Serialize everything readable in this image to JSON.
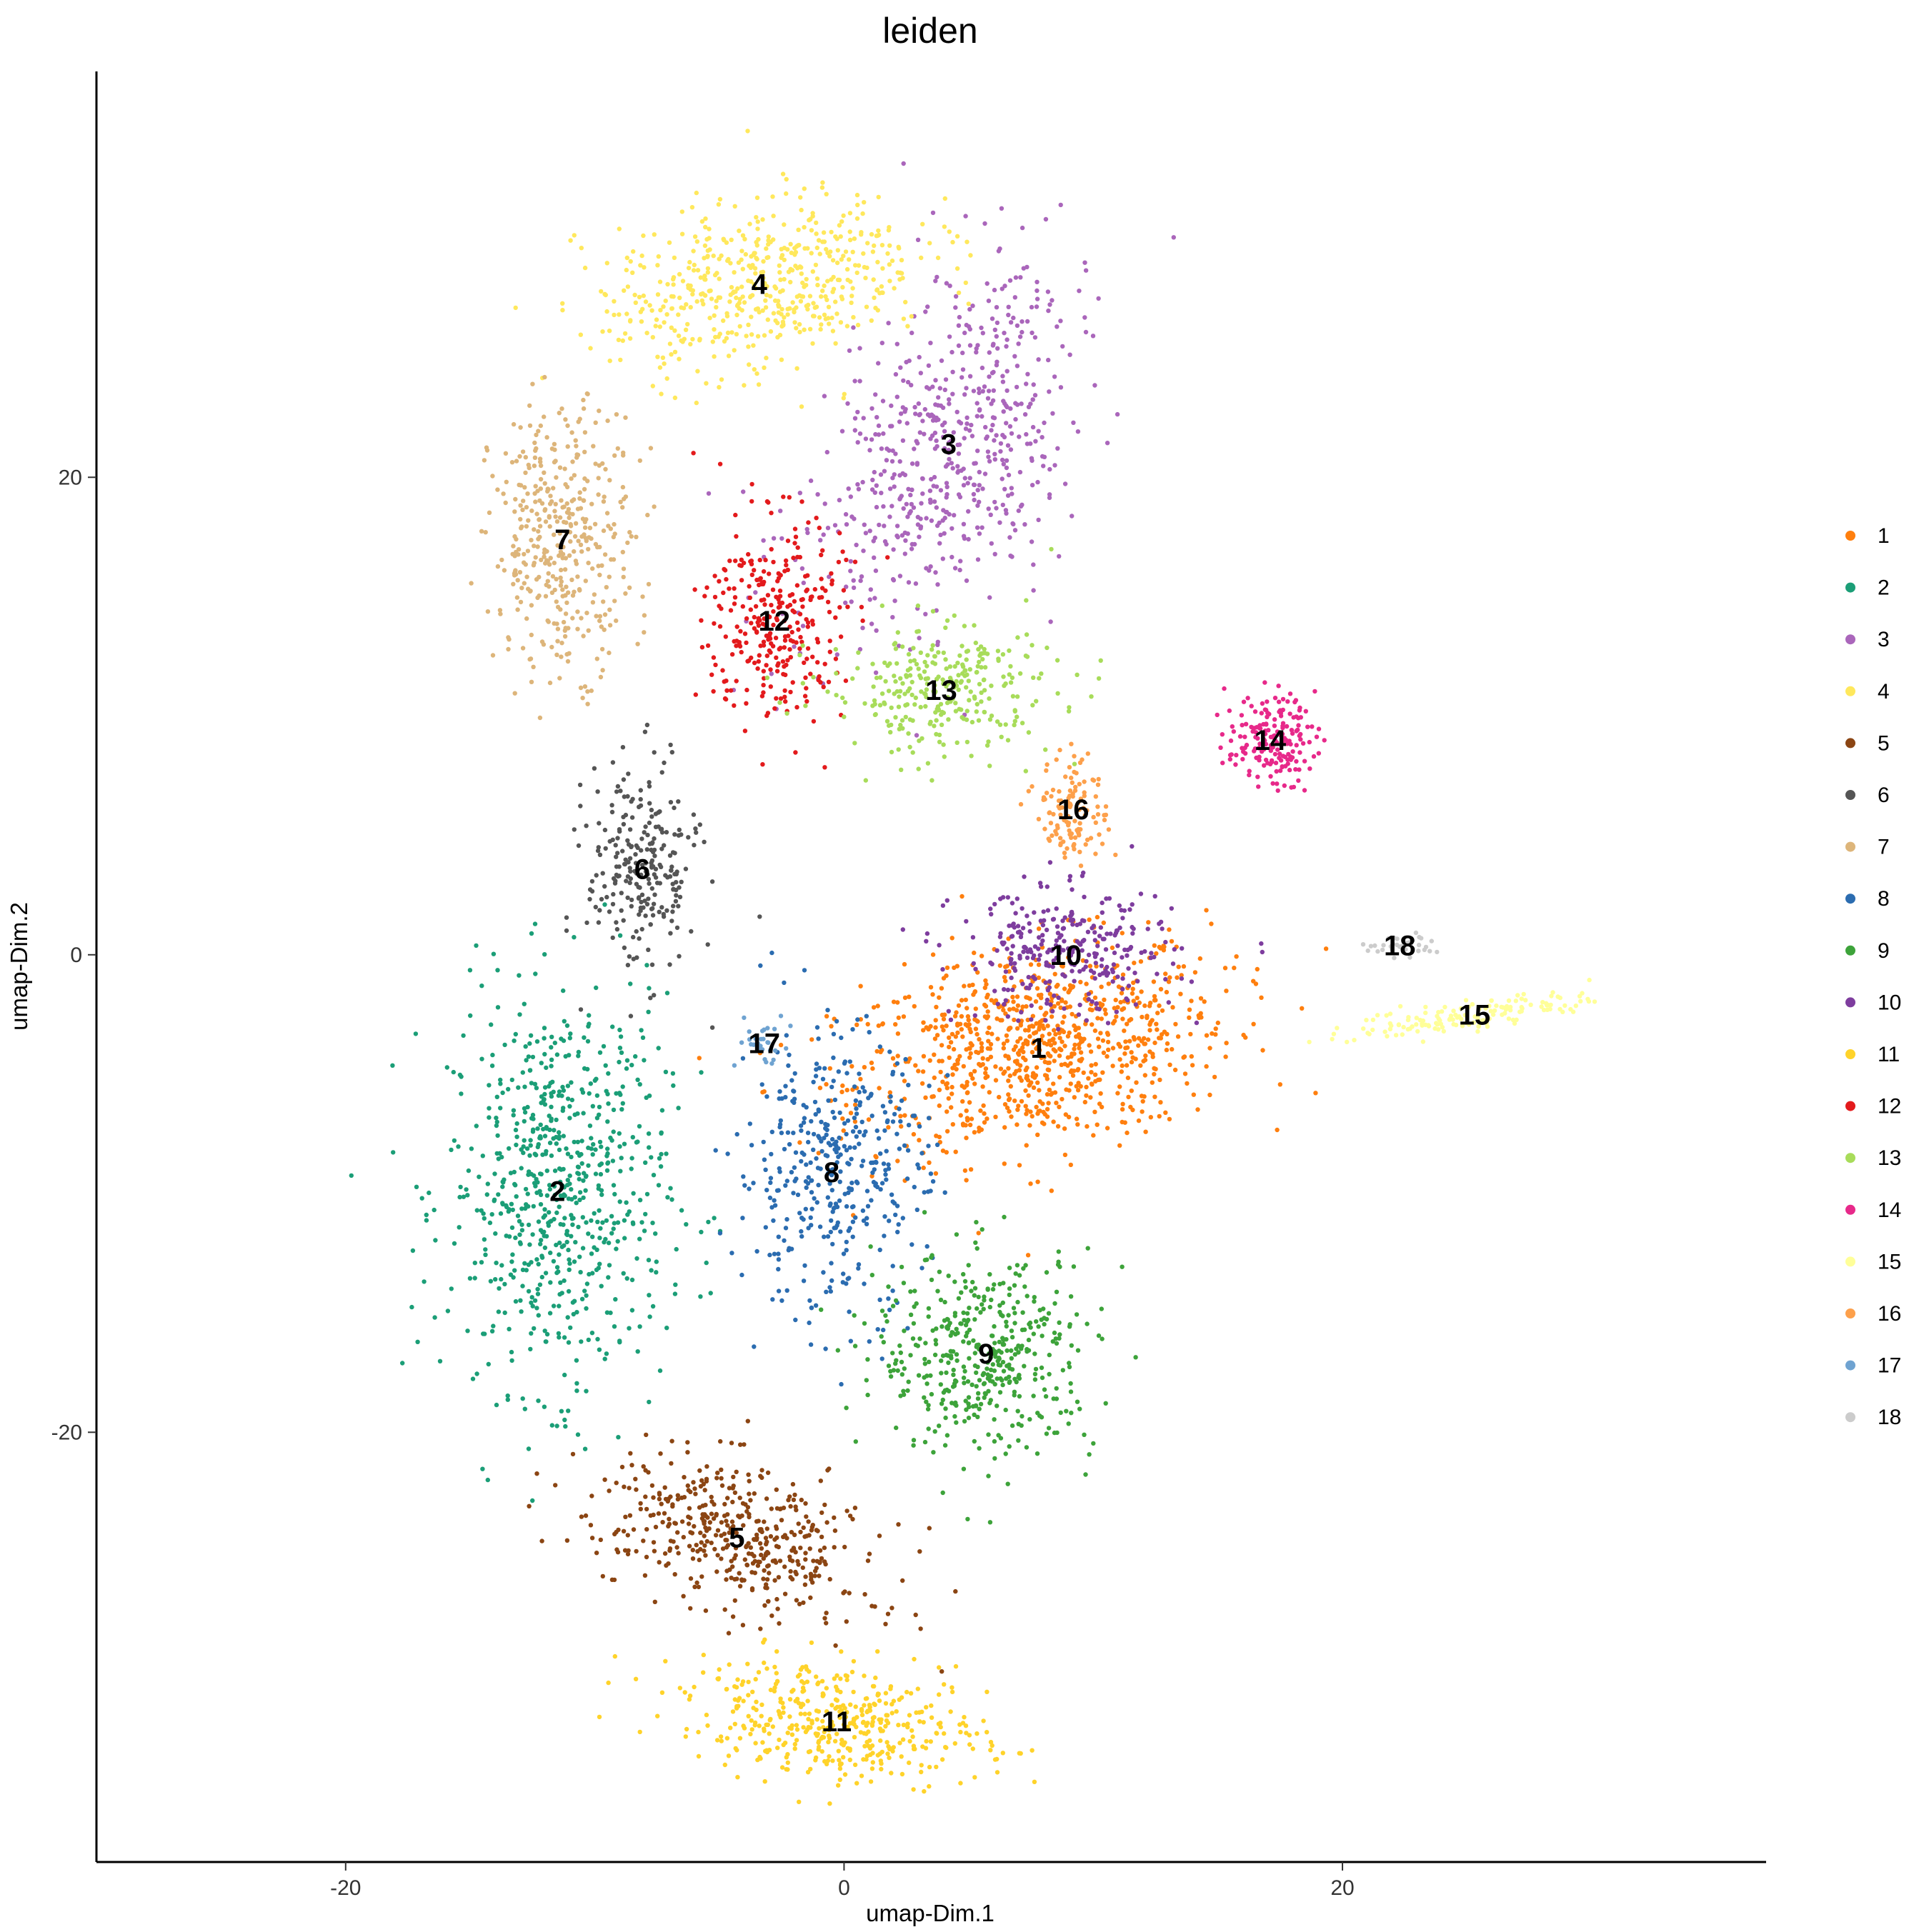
{
  "chart_data": {
    "type": "scatter",
    "title": "leiden",
    "xlabel": "umap-Dim.1",
    "ylabel": "umap-Dim.2",
    "xlim": [
      -30,
      37
    ],
    "ylim": [
      -38,
      37
    ],
    "xticks": [
      -20,
      0,
      20
    ],
    "yticks": [
      -20,
      0,
      20
    ],
    "tick_labels_x": [
      "-20",
      "0",
      "20"
    ],
    "tick_labels_y": [
      "-20",
      "0",
      "20"
    ],
    "grid": false,
    "legend": {
      "placement": "right"
    },
    "series": [
      {
        "name": "1",
        "color": "#FF7F0E",
        "label_pos": [
          7.8,
          -3.9
        ],
        "spread": [
          7.0,
          3.8
        ],
        "angle": 12,
        "n": 900
      },
      {
        "name": "2",
        "color": "#1B9E77",
        "label_pos": [
          -11.5,
          -9.9
        ],
        "spread": [
          4.0,
          7.5
        ],
        "angle": 0,
        "n": 700
      },
      {
        "name": "3",
        "color": "#AA66BB",
        "label_pos": [
          4.2,
          21.4
        ],
        "spread": [
          4.0,
          8.0
        ],
        "angle": -30,
        "n": 600
      },
      {
        "name": "4",
        "color": "#FFE85C",
        "label_pos": [
          -3.4,
          28.1
        ],
        "spread": [
          6.0,
          3.2
        ],
        "angle": 15,
        "n": 550
      },
      {
        "name": "5",
        "color": "#8B4513",
        "label_pos": [
          -4.3,
          -24.4
        ],
        "spread": [
          5.5,
          2.6
        ],
        "angle": -20,
        "n": 450
      },
      {
        "name": "6",
        "color": "#555555",
        "label_pos": [
          -8.1,
          3.6
        ],
        "spread": [
          2.0,
          4.0
        ],
        "angle": 0,
        "n": 250
      },
      {
        "name": "7",
        "color": "#DDB57A",
        "label_pos": [
          -11.3,
          17.4
        ],
        "spread": [
          2.6,
          5.0
        ],
        "angle": 0,
        "n": 400
      },
      {
        "name": "8",
        "color": "#2B6CB0",
        "label_pos": [
          -0.5,
          -9.1
        ],
        "spread": [
          3.5,
          5.5
        ],
        "angle": 0,
        "n": 400
      },
      {
        "name": "9",
        "color": "#3DA33A",
        "label_pos": [
          5.7,
          -16.7
        ],
        "spread": [
          4.0,
          3.8
        ],
        "angle": 0,
        "n": 450
      },
      {
        "name": "10",
        "color": "#7E3D9E",
        "label_pos": [
          8.9,
          0.0
        ],
        "spread": [
          4.0,
          2.5
        ],
        "angle": 0,
        "n": 300
      },
      {
        "name": "11",
        "color": "#FFD32A",
        "label_pos": [
          -0.3,
          -32.1
        ],
        "spread": [
          5.5,
          2.2
        ],
        "angle": -8,
        "n": 450
      },
      {
        "name": "12",
        "color": "#E31A1C",
        "label_pos": [
          -2.8,
          14.0
        ],
        "spread": [
          2.5,
          4.0
        ],
        "angle": 0,
        "n": 300
      },
      {
        "name": "13",
        "color": "#A8DC5A",
        "label_pos": [
          3.9,
          11.1
        ],
        "spread": [
          4.2,
          2.5
        ],
        "angle": 0,
        "n": 300
      },
      {
        "name": "14",
        "color": "#E7298A",
        "label_pos": [
          17.1,
          9.0
        ],
        "spread": [
          1.6,
          1.7
        ],
        "angle": 0,
        "n": 180
      },
      {
        "name": "15",
        "color": "#FFFF99",
        "label_pos": [
          25.3,
          -2.5
        ],
        "spread": [
          4.5,
          0.6
        ],
        "angle": 8,
        "n": 150
      },
      {
        "name": "16",
        "color": "#FDA04B",
        "label_pos": [
          9.2,
          6.1
        ],
        "spread": [
          1.3,
          2.0
        ],
        "angle": 0,
        "n": 120
      },
      {
        "name": "17",
        "color": "#6FA3D1",
        "label_pos": [
          -3.2,
          -3.7
        ],
        "spread": [
          1.0,
          1.0
        ],
        "angle": 0,
        "n": 30
      },
      {
        "name": "18",
        "color": "#CCCCCC",
        "label_pos": [
          22.3,
          0.4
        ],
        "spread": [
          1.4,
          0.4
        ],
        "angle": 0,
        "n": 40
      }
    ],
    "legend_entries": [
      "1",
      "2",
      "3",
      "4",
      "5",
      "6",
      "7",
      "8",
      "9",
      "10",
      "11",
      "12",
      "13",
      "14",
      "15",
      "16",
      "17",
      "18"
    ]
  }
}
